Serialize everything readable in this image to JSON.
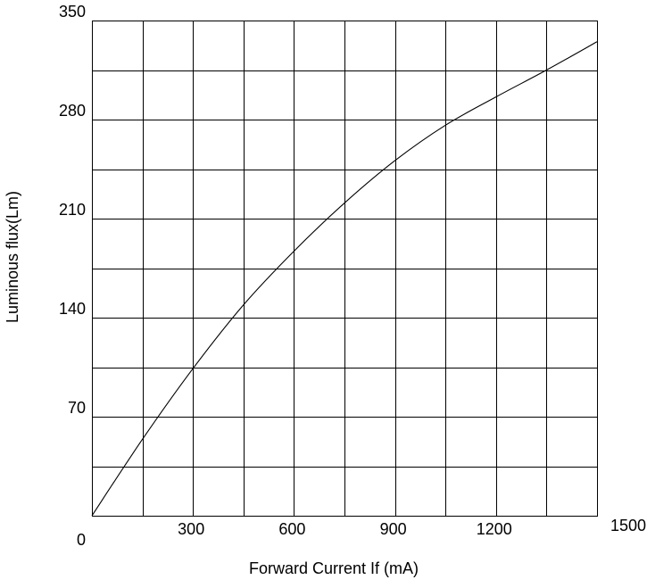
{
  "chart_data": {
    "type": "line",
    "title": "",
    "xlabel": "Forward Current  If (mA)",
    "ylabel": "Luminous flux(Lm)",
    "xlim": [
      0,
      1500
    ],
    "ylim": [
      0,
      350
    ],
    "x_ticks": [
      0,
      300,
      600,
      900,
      1200,
      1500
    ],
    "x_tick_labels": [
      "0",
      "300",
      "600",
      "900",
      "1200",
      "1500"
    ],
    "y_ticks": [
      70,
      140,
      210,
      280,
      350
    ],
    "y_tick_labels": [
      "70",
      "140",
      "210",
      "280",
      "350"
    ],
    "x_minor_step": 150,
    "y_minor_step": 35,
    "grid": true,
    "legend": "none",
    "colors": {
      "line": "#000000",
      "grid": "#000000",
      "background": "#ffffff"
    },
    "series": [
      {
        "x": [
          0,
          150,
          300,
          450,
          600,
          750,
          900,
          1050,
          1200,
          1350,
          1500
        ],
        "y": [
          0,
          54,
          104,
          149,
          187,
          221,
          251,
          276,
          296,
          315,
          335
        ]
      }
    ]
  }
}
